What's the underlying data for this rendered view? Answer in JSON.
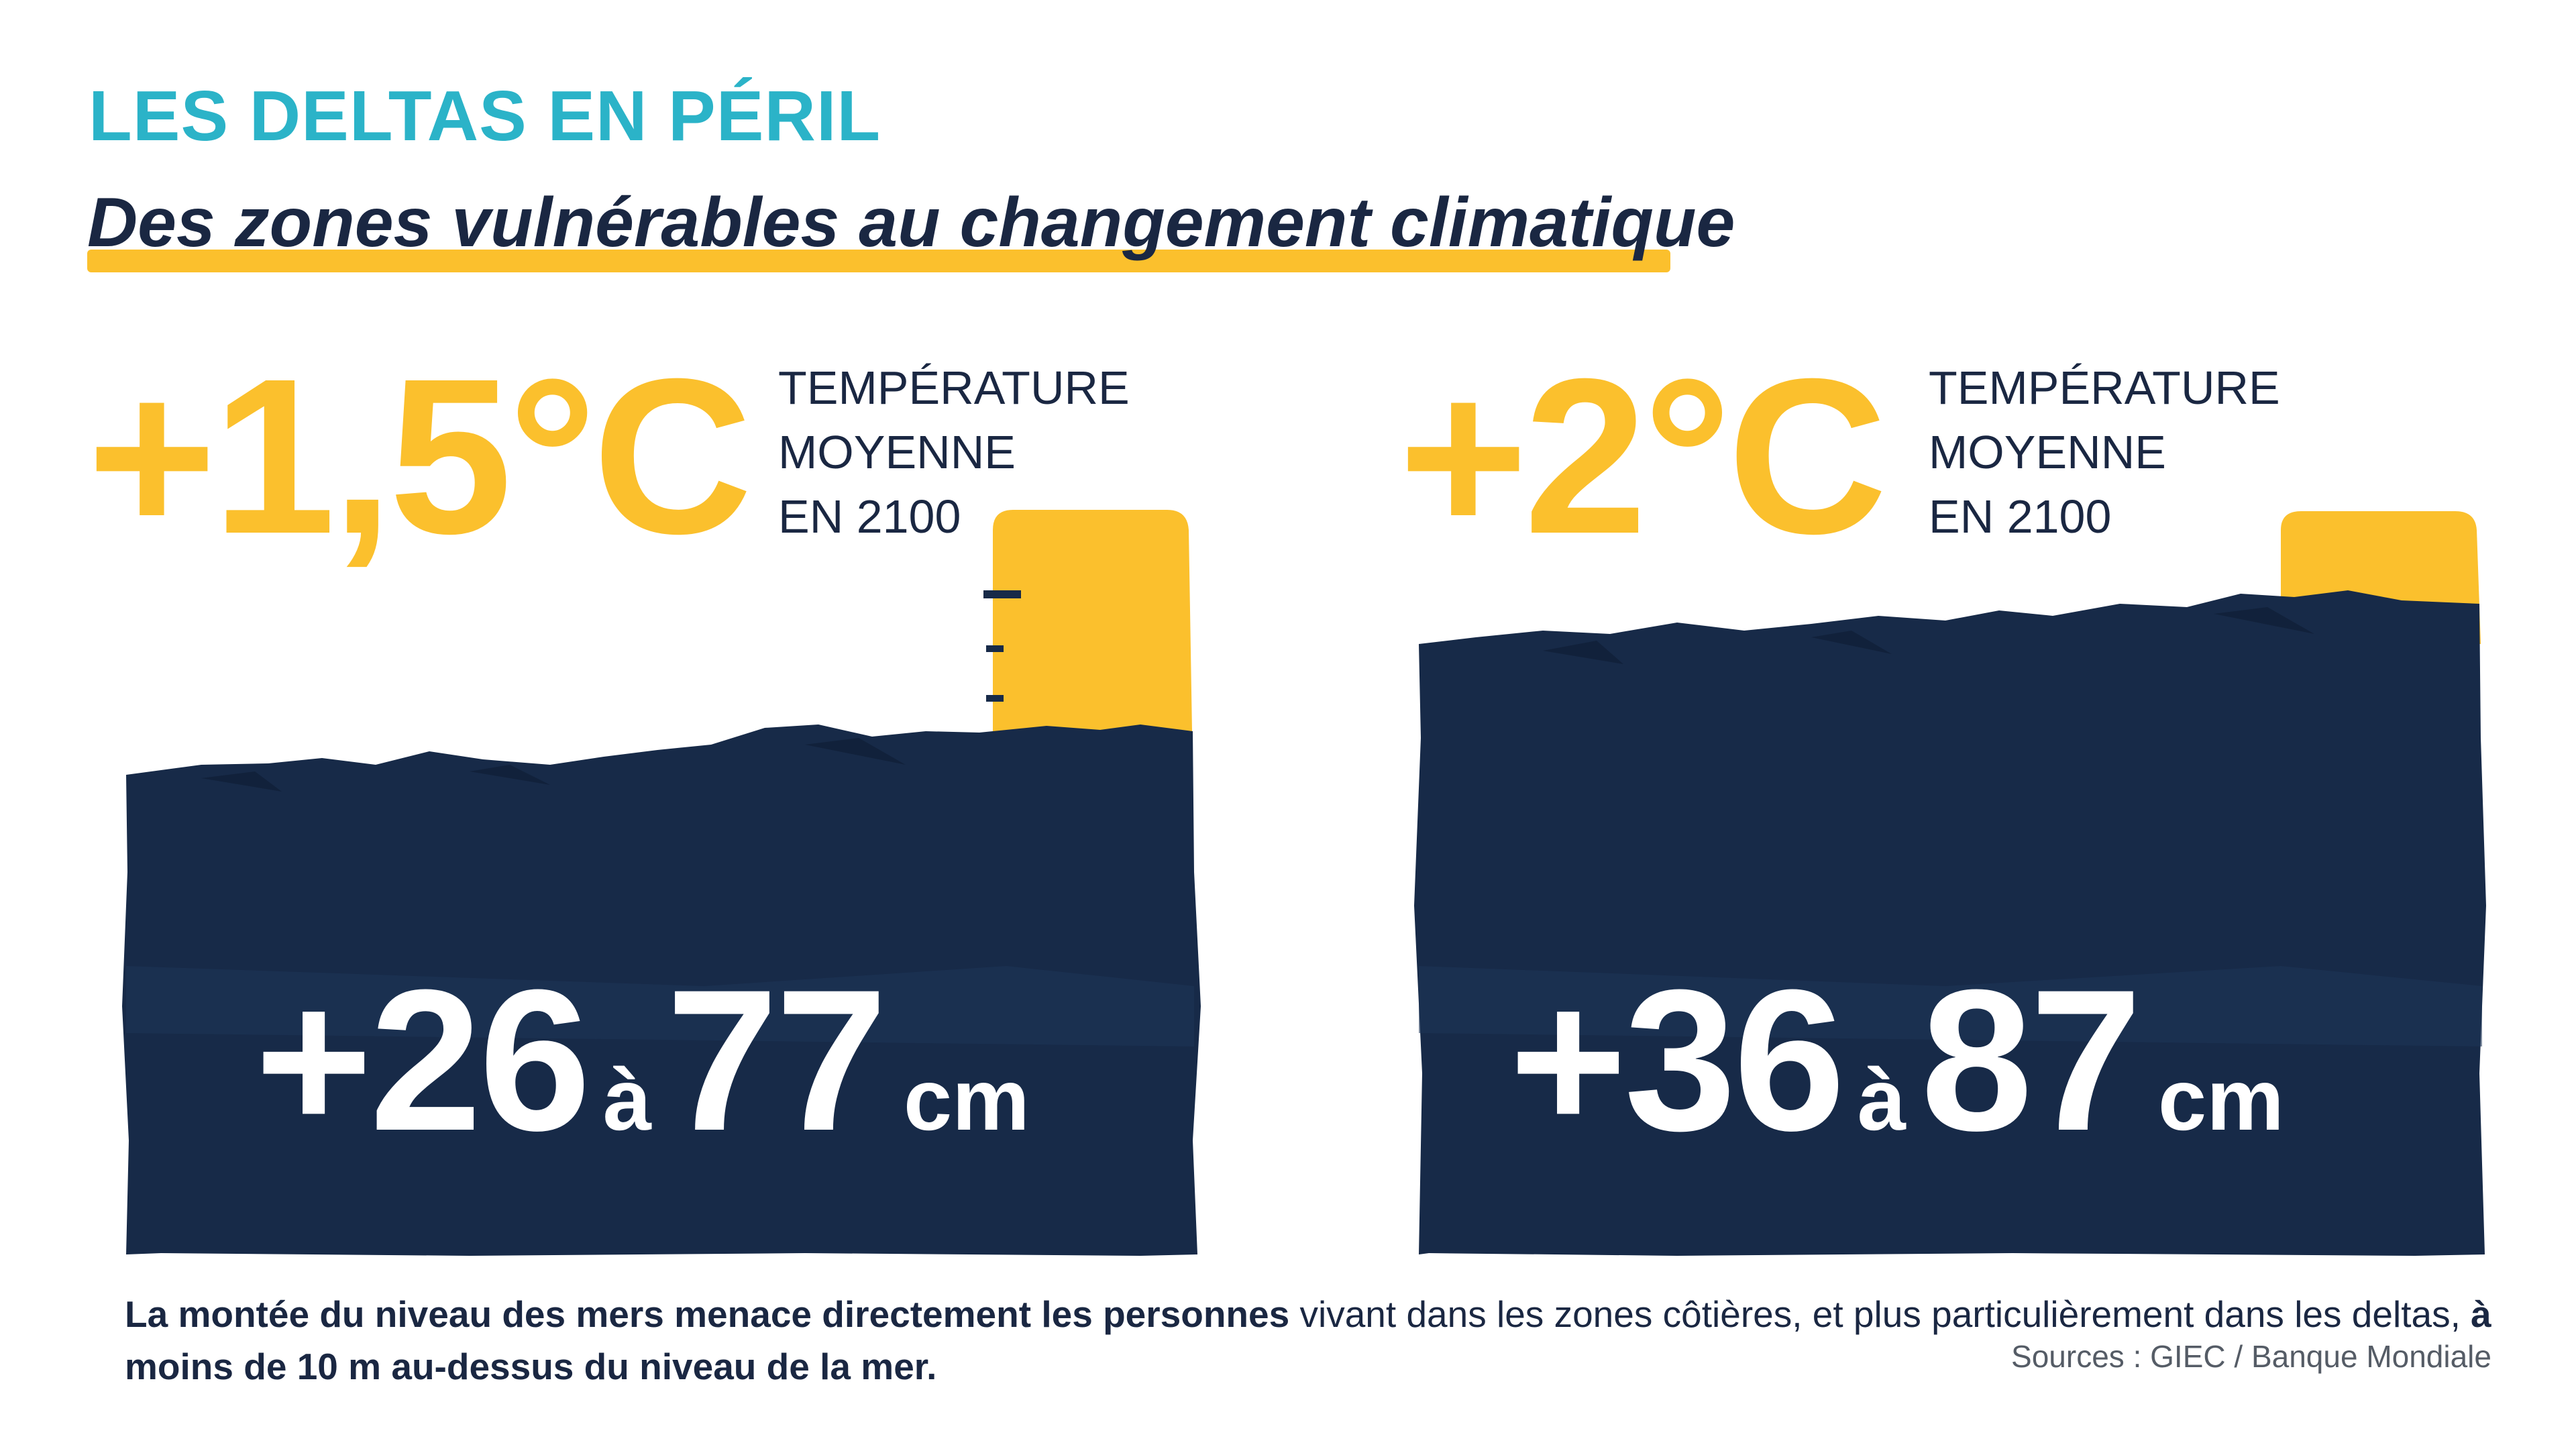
{
  "header": {
    "title": "LES DELTAS EN PÉRIL",
    "subtitle": "Des zones vulnérables au changement climatique"
  },
  "panels": [
    {
      "temperature": "+1,5°C",
      "desc": [
        "TEMPÉRATURE",
        "MOYENNE",
        "EN 2100"
      ],
      "range_min": "+26",
      "range_sep": "à",
      "range_max": "77",
      "unit": "cm"
    },
    {
      "temperature": "+2°C",
      "desc": [
        "TEMPÉRATURE",
        "MOYENNE",
        "EN 2100"
      ],
      "range_min": "+36",
      "range_sep": "à",
      "range_max": "87",
      "unit": "cm"
    }
  ],
  "footer": {
    "bold_1": "La montée du niveau des mers menace directement les personnes",
    "text_1": " vivant dans les zones côtières, et plus particulièrement dans les deltas, ",
    "bold_2": "à moins de 10 m au-dessus du niveau de la mer.",
    "sources": "Sources : GIEC / Banque Mondiale"
  },
  "colors": {
    "accent_teal": "#2bb3c8",
    "accent_yellow": "#fbc02d",
    "navy": "#172a48",
    "text": "#1a2742"
  }
}
